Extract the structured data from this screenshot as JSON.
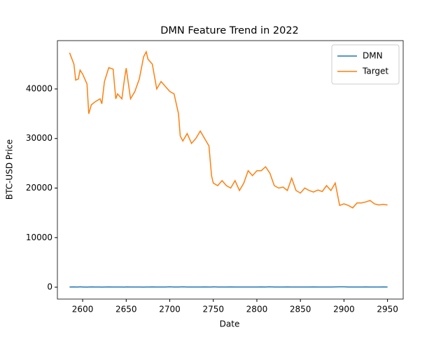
{
  "chart_data": {
    "type": "line",
    "title": "DMN Feature Trend in 2022",
    "xlabel": "Date",
    "ylabel": "BTC-USD Price",
    "x": [
      2585,
      2590,
      2592,
      2595,
      2597,
      2600,
      2605,
      2607,
      2610,
      2615,
      2620,
      2622,
      2625,
      2630,
      2635,
      2638,
      2640,
      2645,
      2648,
      2650,
      2655,
      2660,
      2665,
      2670,
      2673,
      2675,
      2680,
      2685,
      2690,
      2695,
      2700,
      2705,
      2710,
      2712,
      2715,
      2720,
      2725,
      2730,
      2735,
      2740,
      2745,
      2748,
      2750,
      2755,
      2760,
      2765,
      2770,
      2775,
      2780,
      2785,
      2790,
      2795,
      2800,
      2805,
      2810,
      2815,
      2820,
      2825,
      2830,
      2835,
      2840,
      2845,
      2850,
      2855,
      2860,
      2865,
      2870,
      2875,
      2880,
      2885,
      2890,
      2895,
      2900,
      2905,
      2910,
      2915,
      2920,
      2925,
      2930,
      2935,
      2940,
      2945,
      2950
    ],
    "series": [
      {
        "name": "DMN",
        "color": "#1f77b4",
        "values": [
          40,
          60,
          30,
          50,
          70,
          40,
          20,
          50,
          60,
          30,
          40,
          20,
          50,
          60,
          40,
          30,
          50,
          40,
          20,
          60,
          50,
          30,
          40,
          20,
          30,
          50,
          60,
          40,
          30,
          50,
          70,
          40,
          30,
          60,
          80,
          50,
          40,
          30,
          50,
          60,
          40,
          30,
          70,
          50,
          40,
          30,
          60,
          50,
          40,
          30,
          50,
          40,
          30,
          60,
          50,
          70,
          40,
          30,
          50,
          60,
          40,
          30,
          50,
          40,
          30,
          60,
          50,
          40,
          30,
          50,
          60,
          80,
          70,
          50,
          40,
          30,
          50,
          60,
          40,
          30,
          50,
          60,
          50
        ]
      },
      {
        "name": "Target",
        "color": "#ff7f0e",
        "values": [
          47300,
          45000,
          41800,
          42000,
          43800,
          43000,
          41000,
          35000,
          36800,
          37500,
          38000,
          37000,
          41500,
          44300,
          44000,
          38000,
          39000,
          38000,
          42000,
          44200,
          38000,
          39500,
          42000,
          46500,
          47500,
          46000,
          45000,
          40000,
          41500,
          40500,
          39500,
          39000,
          35000,
          30500,
          29500,
          31000,
          29000,
          30000,
          31500,
          30000,
          28500,
          22500,
          21000,
          20500,
          21500,
          20500,
          20000,
          21500,
          19500,
          21000,
          23500,
          22500,
          23500,
          23500,
          24300,
          23000,
          20500,
          20000,
          20200,
          19500,
          22000,
          19500,
          19000,
          20000,
          19500,
          19200,
          19600,
          19300,
          20500,
          19500,
          21000,
          16500,
          16800,
          16500,
          16000,
          17000,
          17000,
          17200,
          17500,
          16800,
          16600,
          16700,
          16600
        ]
      }
    ],
    "xlim": [
      2571,
      2968
    ],
    "ylim": [
      -2400,
      49750
    ],
    "xticks": [
      2600,
      2650,
      2700,
      2750,
      2800,
      2850,
      2900,
      2950
    ],
    "yticks": [
      0,
      10000,
      20000,
      30000,
      40000
    ],
    "legend": "upper right"
  }
}
